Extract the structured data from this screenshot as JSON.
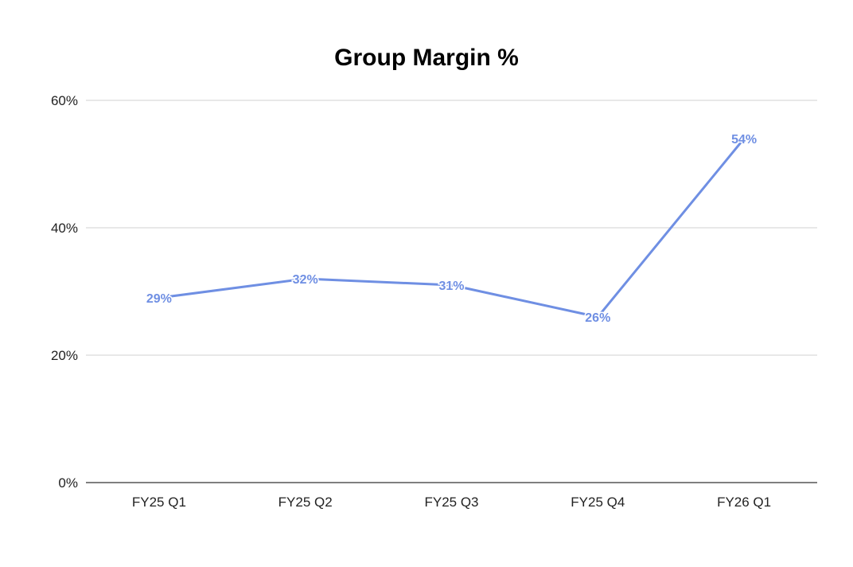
{
  "chart_data": {
    "type": "line",
    "title": "Group Margin %",
    "xlabel": "",
    "ylabel": "",
    "categories": [
      "FY25 Q1",
      "FY25 Q2",
      "FY25 Q3",
      "FY25 Q4",
      "FY26 Q1"
    ],
    "series": [
      {
        "values": [
          29,
          32,
          31,
          26,
          54
        ],
        "data_labels": [
          "29%",
          "32%",
          "31%",
          "26%",
          "54%"
        ],
        "color": "#6f8fe3"
      }
    ],
    "ylim": [
      0,
      60
    ],
    "yticks": [
      0,
      20,
      40,
      60
    ],
    "ytick_labels": [
      "0%",
      "20%",
      "40%",
      "60%"
    ],
    "grid": true,
    "legend": "none"
  }
}
